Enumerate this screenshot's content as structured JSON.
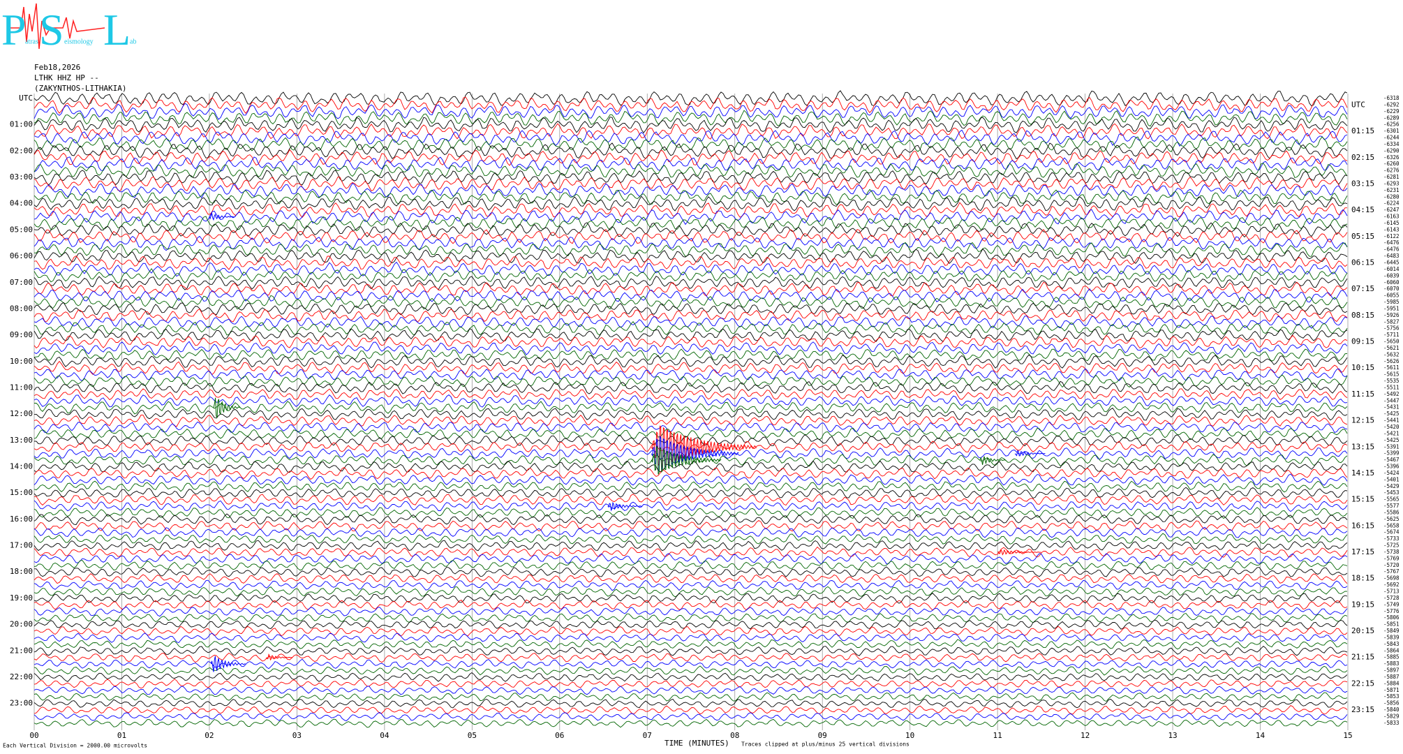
{
  "logo": {
    "letters": [
      "P",
      "S",
      "L"
    ],
    "words": [
      "atras",
      "eismology",
      "ab"
    ]
  },
  "chart_data": {
    "type": "helicorder",
    "date": "Feb18,2026",
    "station": "LTHK HHZ HP --",
    "location": "(ZAKYNTHOS-LITHAKIA)",
    "x_label": "TIME (MINUTES)",
    "scale_note": "Each Vertical Division = 2000.00 microvolts",
    "clip_note": "Traces clipped at plus/minus 25 vertical divisions",
    "xlim": [
      0,
      15
    ],
    "xticks": [
      {
        "value": 0,
        "label": "00"
      },
      {
        "value": 1,
        "label": "01"
      },
      {
        "value": 2,
        "label": "02"
      },
      {
        "value": 3,
        "label": "03"
      },
      {
        "value": 4,
        "label": "04"
      },
      {
        "value": 5,
        "label": "05"
      },
      {
        "value": 6,
        "label": "06"
      },
      {
        "value": 7,
        "label": "07"
      },
      {
        "value": 8,
        "label": "08"
      },
      {
        "value": 9,
        "label": "09"
      },
      {
        "value": 10,
        "label": "10"
      },
      {
        "value": 11,
        "label": "11"
      },
      {
        "value": 12,
        "label": "12"
      },
      {
        "value": 13,
        "label": "13"
      },
      {
        "value": 14,
        "label": "14"
      },
      {
        "value": 15,
        "label": "15"
      }
    ],
    "grid": true,
    "colors": [
      "#000000",
      "#ff0000",
      "#0000ff",
      "#006400"
    ],
    "left_labels": [
      "UTC",
      "01:00",
      "02:00",
      "03:00",
      "04:00",
      "05:00",
      "06:00",
      "07:00",
      "08:00",
      "09:00",
      "10:00",
      "11:00",
      "12:00",
      "13:00",
      "14:00",
      "15:00",
      "16:00",
      "17:00",
      "18:00",
      "19:00",
      "20:00",
      "21:00",
      "22:00",
      "23:00"
    ],
    "right_labels": [
      "UTC",
      "01:15",
      "02:15",
      "03:15",
      "04:15",
      "05:15",
      "06:15",
      "07:15",
      "08:15",
      "09:15",
      "10:15",
      "11:15",
      "12:15",
      "13:15",
      "14:15",
      "15:15",
      "16:15",
      "17:15",
      "18:15",
      "19:15",
      "20:15",
      "21:15",
      "22:15",
      "23:15"
    ],
    "trace_offsets": [
      -6318,
      -6292,
      -6229,
      -6289,
      -6256,
      -6301,
      -6244,
      -6334,
      -6290,
      -6326,
      -6260,
      -6276,
      -6281,
      -6293,
      -6231,
      -6280,
      -6224,
      -6247,
      -6163,
      -6145,
      -6143,
      -6122,
      -6476,
      -6476,
      -6483,
      -6445,
      -6014,
      -6039,
      -6060,
      -6070,
      -6055,
      -5985,
      -5951,
      -5926,
      -5827,
      -5756,
      -5711,
      -5650,
      -5621,
      -5632,
      -5626,
      -5611,
      -5615,
      -5535,
      -5511,
      -5492,
      -5447,
      -5431,
      -5425,
      -5441,
      -5420,
      -5421,
      -5425,
      -5391,
      -5399,
      -5467,
      -5396,
      -5424,
      -5401,
      -5429,
      -5453,
      -5565,
      -5577,
      -5586,
      -5625,
      -5658,
      -5674,
      -5733,
      -5725,
      -5738,
      -5769,
      -5720,
      -5767,
      -5698,
      -5692,
      -5713,
      -5728,
      -5749,
      -5776,
      -5806,
      -5851,
      -5849,
      -5839,
      -5843,
      -5864,
      -5885,
      -5883,
      -5897,
      -5887,
      -5884,
      -5871,
      -5853,
      -5856,
      -5840,
      -5829,
      -5833
    ],
    "events": [
      {
        "trace": 18,
        "minute": 2.0,
        "amplitude": 0.8,
        "duration": 0.3
      },
      {
        "trace": 47,
        "minute": 2.05,
        "amplitude": 3,
        "duration": 0.3
      },
      {
        "trace": 53,
        "minute": 7.05,
        "amplitude": 6,
        "duration": 1.2
      },
      {
        "trace": 54,
        "minute": 7.05,
        "amplitude": 5,
        "duration": 1.0
      },
      {
        "trace": 55,
        "minute": 7.05,
        "amplitude": 4,
        "duration": 0.8
      },
      {
        "trace": 54,
        "minute": 11.2,
        "amplitude": 0.8,
        "duration": 0.35
      },
      {
        "trace": 55,
        "minute": 10.8,
        "amplitude": 1,
        "duration": 0.3
      },
      {
        "trace": 62,
        "minute": 6.55,
        "amplitude": 1,
        "duration": 0.4
      },
      {
        "trace": 69,
        "minute": 11.0,
        "amplitude": 0.6,
        "duration": 0.5
      },
      {
        "trace": 85,
        "minute": 2.65,
        "amplitude": 0.7,
        "duration": 0.3
      },
      {
        "trace": 86,
        "minute": 2.02,
        "amplitude": 2,
        "duration": 0.4
      }
    ]
  }
}
